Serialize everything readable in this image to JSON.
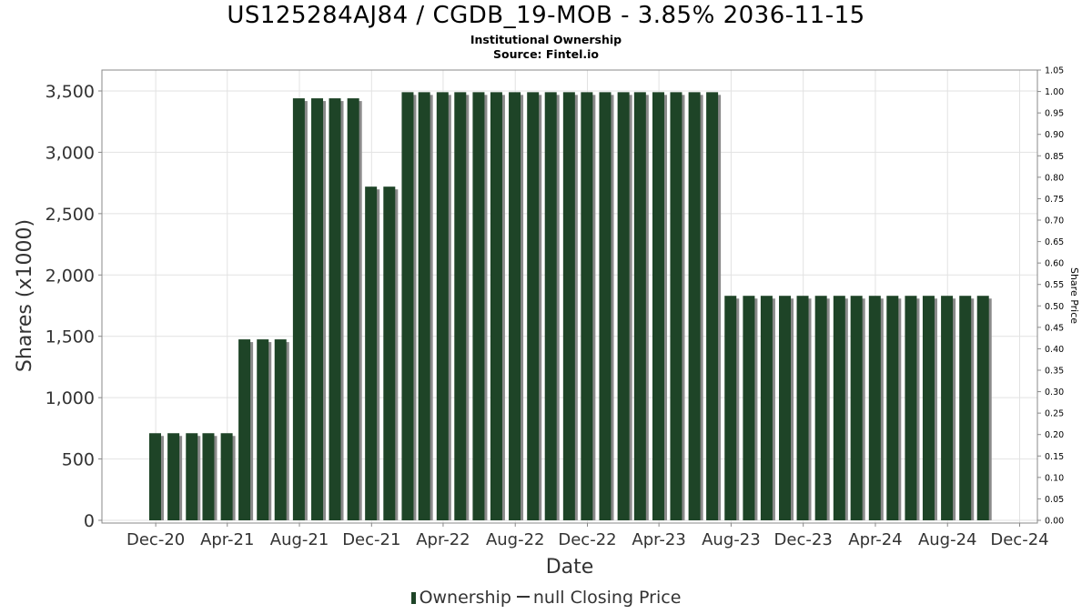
{
  "chart_data": {
    "type": "bar",
    "title": "US125284AJ84 / CGDB_19-MOB - 3.85% 2036-11-15",
    "subtitle": "Institutional Ownership",
    "source": "Source: Fintel.io",
    "xlabel": "Date",
    "ylabel": "Shares (x1000)",
    "y2label": "Share Price",
    "x_ticks": [
      "Dec-20",
      "Apr-21",
      "Aug-21",
      "Dec-21",
      "Apr-22",
      "Aug-22",
      "Dec-22",
      "Apr-23",
      "Aug-23",
      "Dec-23",
      "Apr-24",
      "Aug-24",
      "Dec-24"
    ],
    "y_ticks": [
      "0",
      "500",
      "1,000",
      "1,500",
      "2,000",
      "2,500",
      "3,000",
      "3,500"
    ],
    "y2_ticks": [
      "0.00",
      "0.05",
      "0.10",
      "0.15",
      "0.20",
      "0.25",
      "0.30",
      "0.35",
      "0.40",
      "0.45",
      "0.50",
      "0.55",
      "0.60",
      "0.65",
      "0.70",
      "0.75",
      "0.80",
      "0.85",
      "0.90",
      "0.95",
      "1.00",
      "1.05"
    ],
    "ylim": [
      0,
      3650
    ],
    "y2lim": [
      0,
      1.05
    ],
    "x_range": [
      "2020-09-01",
      "2024-12-31"
    ],
    "grid": true,
    "legend_position": "bottom",
    "series": [
      {
        "name": "Ownership",
        "color": "#1e4427",
        "dates": [
          "2020-11-30",
          "2020-12-31",
          "2021-01-31",
          "2021-02-28",
          "2021-03-31",
          "2021-04-30",
          "2021-05-31",
          "2021-06-30",
          "2021-07-31",
          "2021-08-31",
          "2021-09-30",
          "2021-10-31",
          "2021-11-30",
          "2021-12-31",
          "2022-01-31",
          "2022-02-28",
          "2022-03-31",
          "2022-04-30",
          "2022-05-31",
          "2022-06-30",
          "2022-07-31",
          "2022-08-31",
          "2022-09-30",
          "2022-10-31",
          "2022-11-30",
          "2022-12-31",
          "2023-01-31",
          "2023-02-28",
          "2023-03-31",
          "2023-04-30",
          "2023-05-31",
          "2023-06-30",
          "2023-07-31",
          "2023-08-31",
          "2023-09-30",
          "2023-10-31",
          "2023-11-30",
          "2023-12-31",
          "2024-01-31",
          "2024-02-29",
          "2024-03-31",
          "2024-04-30",
          "2024-05-31",
          "2024-06-30",
          "2024-07-31",
          "2024-08-31",
          "2024-09-30"
        ],
        "values": [
          710,
          710,
          710,
          710,
          710,
          1475,
          1475,
          1475,
          3440,
          3440,
          3440,
          3440,
          2720,
          2720,
          3490,
          3490,
          3490,
          3490,
          3490,
          3490,
          3490,
          3490,
          3490,
          3490,
          3490,
          3490,
          3490,
          3490,
          3490,
          3490,
          3490,
          3490,
          1830,
          1830,
          1830,
          1830,
          1830,
          1830,
          1830,
          1830,
          1830,
          1830,
          1830,
          1830,
          1830,
          1830,
          1830
        ]
      },
      {
        "name": "null Closing Price",
        "color": "#333333",
        "values": []
      }
    ]
  },
  "legend": {
    "ownership_label": "Ownership",
    "price_label": "null Closing Price"
  }
}
